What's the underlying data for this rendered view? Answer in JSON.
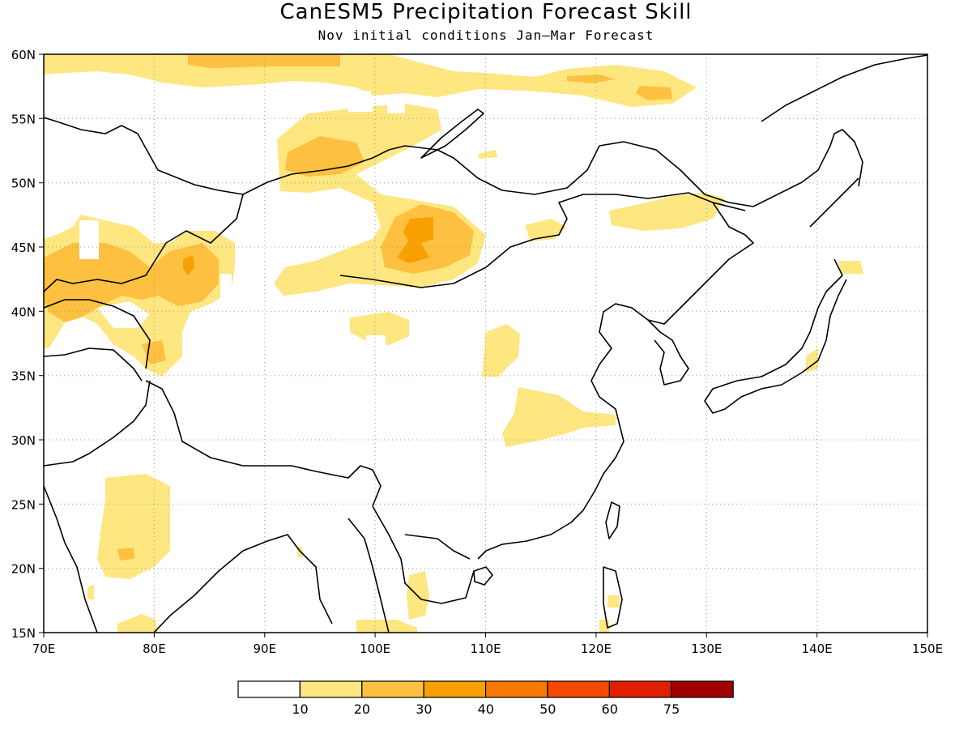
{
  "title": "CanESM5 Precipitation Forecast Skill",
  "subtitle": "Nov initial conditions  Jan–Mar Forecast",
  "map": {
    "lon_range": [
      70,
      150
    ],
    "lat_range": [
      15,
      60
    ],
    "lon_ticks": [
      "70E",
      "80E",
      "90E",
      "100E",
      "110E",
      "120E",
      "130E",
      "140E",
      "150E"
    ],
    "lat_ticks": [
      "15N",
      "20N",
      "25N",
      "30N",
      "35N",
      "40N",
      "45N",
      "50N",
      "55N",
      "60N"
    ],
    "gridlines": "dotted"
  },
  "colorbar": {
    "colors": [
      "#ffffff",
      "#fee680",
      "#fdc040",
      "#f8a000",
      "#f87800",
      "#f54a00",
      "#e01e00",
      "#a00000"
    ],
    "labels": [
      "10",
      "20",
      "30",
      "40",
      "50",
      "60",
      "75"
    ]
  }
}
